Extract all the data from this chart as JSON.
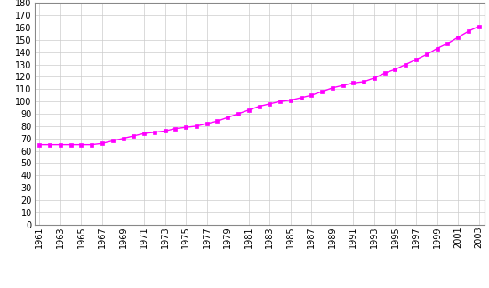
{
  "years": [
    1961,
    1962,
    1963,
    1964,
    1965,
    1966,
    1967,
    1968,
    1969,
    1970,
    1971,
    1972,
    1973,
    1974,
    1975,
    1976,
    1977,
    1978,
    1979,
    1980,
    1981,
    1982,
    1983,
    1984,
    1985,
    1986,
    1987,
    1988,
    1989,
    1990,
    1991,
    1992,
    1993,
    1994,
    1995,
    1996,
    1997,
    1998,
    1999,
    2000,
    2001,
    2002,
    2003
  ],
  "values": [
    65,
    65,
    65,
    65,
    65,
    65,
    66,
    68,
    70,
    72,
    74,
    75,
    76,
    78,
    79,
    80,
    82,
    84,
    87,
    90,
    93,
    96,
    98,
    100,
    101,
    103,
    105,
    108,
    111,
    113,
    115,
    116,
    119,
    123,
    126,
    130,
    134,
    138,
    143,
    147,
    152,
    157,
    161
  ],
  "line_color": "#ff00ff",
  "marker": "s",
  "marker_size": 3,
  "marker_color": "#ff00ff",
  "background_color": "#ffffff",
  "grid_color": "#cccccc",
  "ylim": [
    0,
    180
  ],
  "yticks": [
    0,
    10,
    20,
    30,
    40,
    50,
    60,
    70,
    80,
    90,
    100,
    110,
    120,
    130,
    140,
    150,
    160,
    170,
    180
  ],
  "xlim_start": 1961,
  "xlim_end": 2003,
  "xtick_labels": [
    "1961",
    "1963",
    "1965",
    "1967",
    "1969",
    "1971",
    "1973",
    "1975",
    "1977",
    "1979",
    "1981",
    "1983",
    "1985",
    "1987",
    "1989",
    "1991",
    "1993",
    "1995",
    "1997",
    "1999",
    "2001",
    "2003"
  ],
  "spine_color": "#888888",
  "tick_fontsize": 7,
  "linewidth": 1.0
}
